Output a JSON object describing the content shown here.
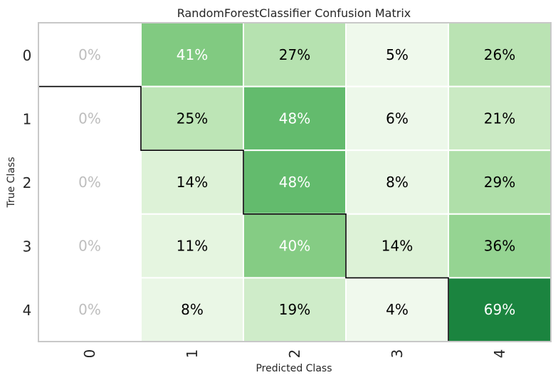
{
  "chart_data": {
    "type": "heatmap",
    "title": "RandomForestClassifier Confusion Matrix",
    "xlabel": "Predicted Class",
    "ylabel": "True Class",
    "x_categories": [
      "0",
      "1",
      "2",
      "3",
      "4"
    ],
    "y_categories": [
      "0",
      "1",
      "2",
      "3",
      "4"
    ],
    "values": [
      [
        0,
        41,
        27,
        5,
        26
      ],
      [
        0,
        25,
        48,
        6,
        21
      ],
      [
        0,
        14,
        48,
        8,
        29
      ],
      [
        0,
        11,
        40,
        14,
        36
      ],
      [
        0,
        8,
        19,
        4,
        69
      ]
    ],
    "value_suffix": "%",
    "colormap": "Greens",
    "zero_text_color": "#bdbdbd",
    "grid": true,
    "diagonal_highlight": true
  }
}
